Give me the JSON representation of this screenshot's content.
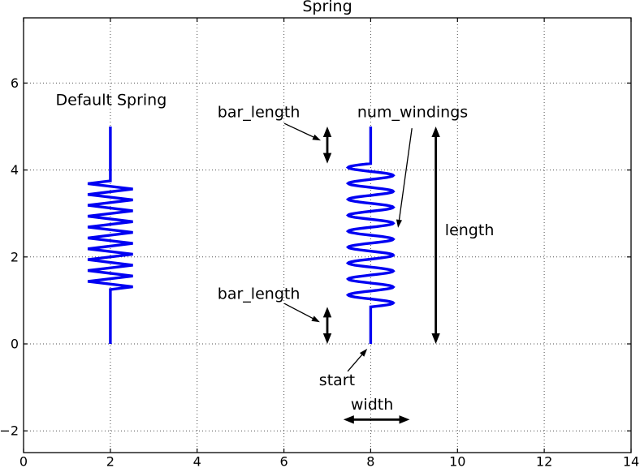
{
  "title": "Spring",
  "colors": {
    "spring": "#0000f2",
    "foreground": "#000000",
    "grid": "#4d4d4d",
    "background": "#ffffff"
  },
  "axes": {
    "xlim": [
      0,
      14
    ],
    "ylim": [
      -2.5,
      7.5
    ],
    "grid_on": true,
    "xticks": [
      {
        "v": 0,
        "label": "0"
      },
      {
        "v": 2,
        "label": "2"
      },
      {
        "v": 4,
        "label": "4"
      },
      {
        "v": 6,
        "label": "6"
      },
      {
        "v": 8,
        "label": "8"
      },
      {
        "v": 10,
        "label": "10"
      },
      {
        "v": 12,
        "label": "12"
      },
      {
        "v": 14,
        "label": "14"
      }
    ],
    "yticks": [
      {
        "v": -2,
        "label": "−2"
      },
      {
        "v": 0,
        "label": "0"
      },
      {
        "v": 2,
        "label": "2"
      },
      {
        "v": 4,
        "label": "4"
      },
      {
        "v": 6,
        "label": "6"
      }
    ],
    "grid_x": [
      2,
      4,
      6,
      8,
      10,
      12
    ],
    "grid_y": [
      -2,
      0,
      2,
      4,
      6
    ]
  },
  "chart_data": {
    "type": "line",
    "title": "Spring",
    "xlabel": "",
    "ylabel": "",
    "springs": [
      {
        "name": "default-spring",
        "x": 2,
        "start": 0,
        "length": 5,
        "bar_length": 1.25,
        "num_windings": 10,
        "width": 1.04,
        "shape": "zigzag"
      },
      {
        "name": "annotated-spring",
        "x": 8,
        "start": 0,
        "length": 5,
        "bar_length": 0.85,
        "num_windings": 9,
        "width": 1.04,
        "shape": "sine"
      }
    ],
    "labels": [
      {
        "id": "default-spring-label",
        "text": "Default Spring",
        "x": 2.02,
        "y": 5.49,
        "anchor": "middle"
      },
      {
        "id": "bar-length-top-label",
        "text": "bar_length",
        "x": 4.47,
        "y": 5.21,
        "anchor": "start"
      },
      {
        "id": "num-windings-label",
        "text": "num_windings",
        "x": 7.69,
        "y": 5.21,
        "anchor": "start"
      },
      {
        "id": "length-label",
        "text": "length",
        "x": 9.71,
        "y": 2.5,
        "anchor": "start"
      },
      {
        "id": "bar-length-bottom-label",
        "text": "bar_length",
        "x": 4.47,
        "y": 1.04,
        "anchor": "start"
      },
      {
        "id": "start-label",
        "text": "start",
        "x": 6.81,
        "y": -0.95,
        "anchor": "start"
      },
      {
        "id": "width-label",
        "text": "width",
        "x": 7.54,
        "y": -1.51,
        "anchor": "start"
      }
    ],
    "pointer_arrows": [
      {
        "id": "bar-length-top-pointer",
        "from": [
          6.01,
          5.07
        ],
        "to": [
          6.85,
          4.68
        ]
      },
      {
        "id": "num-windings-pointer",
        "from": [
          8.95,
          4.96
        ],
        "to": [
          8.63,
          2.67
        ]
      },
      {
        "id": "bar-length-bottom-pointer",
        "from": [
          6.01,
          0.93
        ],
        "to": [
          6.83,
          0.5
        ]
      },
      {
        "id": "start-pointer",
        "from": [
          7.47,
          -0.63
        ],
        "to": [
          7.92,
          -0.11
        ]
      }
    ],
    "dimension_arrows": [
      {
        "id": "bar-length-top-extent",
        "x1": 7.0,
        "y1": 4.15,
        "x2": 7.0,
        "y2": 5.0
      },
      {
        "id": "length-extent",
        "x1": 9.5,
        "y1": 0.0,
        "x2": 9.5,
        "y2": 5.0
      },
      {
        "id": "bar-length-bottom-extent",
        "x1": 7.0,
        "y1": 0.0,
        "x2": 7.0,
        "y2": 0.85
      },
      {
        "id": "width-extent",
        "x1": 7.37,
        "y1": -1.74,
        "x2": 8.9,
        "y2": -1.74
      }
    ]
  }
}
